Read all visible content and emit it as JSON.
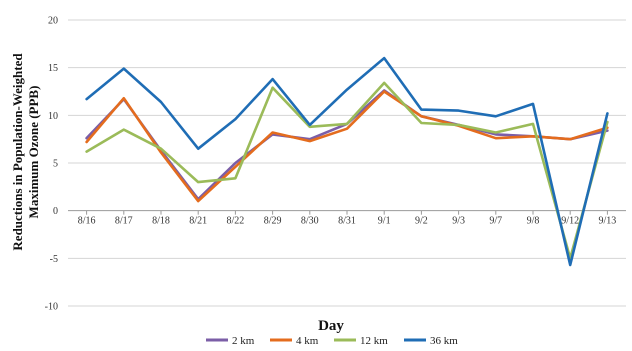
{
  "chart_data": {
    "type": "line",
    "title": "",
    "xlabel": "Day",
    "ylabel": "Reductions in Population-Weighted Maximum Ozone (PPB)",
    "ylabel_lines": [
      "Reductions in Population-Weighted",
      "Maximum Ozone (PPB)"
    ],
    "categories": [
      "8/16",
      "8/17",
      "8/18",
      "8/21",
      "8/22",
      "8/29",
      "8/30",
      "8/31",
      "9/1",
      "9/2",
      "9/3",
      "9/7",
      "9/8",
      "9/12",
      "9/13"
    ],
    "ylim": [
      -10,
      20
    ],
    "yticks": [
      -10,
      -5,
      0,
      5,
      10,
      15,
      20
    ],
    "grid": "horizontal",
    "legend_position": "bottom",
    "series": [
      {
        "name": "2 km",
        "color": "#7B5EA7",
        "values": [
          7.6,
          11.7,
          6.3,
          1.2,
          5.0,
          8.0,
          7.5,
          9.1,
          12.6,
          9.9,
          9.0,
          8.0,
          7.8,
          7.5,
          8.4
        ]
      },
      {
        "name": "4 km",
        "color": "#E46C1E",
        "values": [
          7.2,
          11.8,
          6.1,
          1.0,
          4.6,
          8.2,
          7.3,
          8.6,
          12.5,
          9.9,
          8.9,
          7.6,
          7.8,
          7.5,
          8.7
        ]
      },
      {
        "name": "12 km",
        "color": "#9BBB59",
        "values": [
          6.2,
          8.5,
          6.5,
          3.0,
          3.4,
          12.9,
          8.8,
          9.1,
          13.4,
          9.2,
          9.0,
          8.2,
          9.1,
          -5.0,
          9.3
        ]
      },
      {
        "name": "36 km",
        "color": "#1F6DB5",
        "values": [
          11.7,
          14.9,
          11.4,
          6.5,
          9.6,
          13.8,
          9.0,
          12.7,
          16.0,
          10.6,
          10.5,
          9.9,
          11.2,
          -5.7,
          10.2
        ]
      }
    ]
  }
}
